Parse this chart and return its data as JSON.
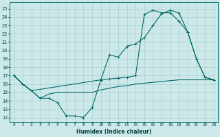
{
  "xlabel": "Humidex (Indice chaleur)",
  "bg_color": "#cce8e8",
  "grid_color": "#a8d0d0",
  "line_color": "#006868",
  "xlim": [
    -0.5,
    23.5
  ],
  "ylim": [
    11.5,
    25.8
  ],
  "xticks": [
    0,
    1,
    2,
    3,
    4,
    5,
    6,
    7,
    8,
    9,
    10,
    11,
    12,
    13,
    14,
    15,
    16,
    17,
    18,
    19,
    20,
    21,
    22,
    23
  ],
  "yticks": [
    12,
    13,
    14,
    15,
    16,
    17,
    18,
    19,
    20,
    21,
    22,
    23,
    24,
    25
  ],
  "line1_x": [
    0,
    1,
    2,
    3,
    4,
    5,
    6,
    7,
    8,
    9,
    10,
    11,
    12,
    13,
    14,
    15,
    16,
    17,
    18,
    19,
    20,
    21,
    22,
    23
  ],
  "line1_y": [
    17,
    16,
    15.2,
    14.3,
    14.3,
    13.8,
    12.2,
    12.2,
    12.0,
    13.2,
    16.5,
    19.5,
    19.2,
    20.5,
    20.8,
    21.5,
    23.0,
    24.4,
    24.8,
    24.5,
    22.2,
    19.0,
    16.8,
    16.5
  ],
  "line2_x": [
    0,
    1,
    2,
    10,
    11,
    12,
    13,
    14,
    15,
    16,
    17,
    18,
    19,
    20,
    21,
    22,
    23
  ],
  "line2_y": [
    17,
    16,
    15.2,
    16.5,
    16.6,
    16.7,
    16.8,
    17.0,
    24.3,
    24.8,
    24.5,
    24.5,
    23.5,
    22.2,
    19.0,
    16.8,
    16.5
  ],
  "line3_x": [
    0,
    1,
    2,
    3,
    4,
    5,
    6,
    7,
    8,
    9,
    10,
    11,
    12,
    13,
    14,
    15,
    16,
    17,
    18,
    19,
    20,
    21,
    22,
    23
  ],
  "line3_y": [
    17,
    16,
    15.2,
    14.3,
    14.8,
    15.0,
    15.0,
    15.0,
    15.0,
    15.0,
    15.3,
    15.5,
    15.7,
    15.8,
    16.0,
    16.1,
    16.2,
    16.3,
    16.4,
    16.5,
    16.5,
    16.5,
    16.5,
    16.5
  ]
}
